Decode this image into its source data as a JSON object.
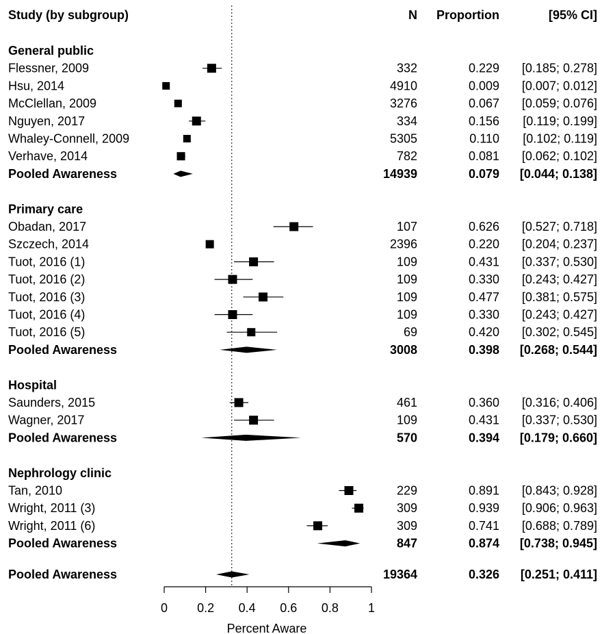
{
  "chart_data": {
    "type": "forest",
    "header": {
      "study": "Study (by subgroup)",
      "n": "N",
      "proportion": "Proportion",
      "ci": "[95% CI]"
    },
    "xlabel": "Percent Aware",
    "xlim": [
      0,
      1
    ],
    "xticks": [
      0,
      0.2,
      0.4,
      0.6,
      0.8,
      1
    ],
    "tick_labels": [
      "0",
      "0.2",
      "0.4",
      "0.6",
      "0.8",
      "1"
    ],
    "reference_line": 0.326,
    "subgroups": [
      {
        "name": "General public",
        "studies": [
          {
            "label": "Flessner, 2009",
            "n": "332",
            "prop": 0.229,
            "lo": 0.185,
            "hi": 0.278,
            "prop_text": "0.229",
            "ci_text": "[0.185; 0.278]",
            "size": 13
          },
          {
            "label": "Hsu, 2014",
            "n": "4910",
            "prop": 0.009,
            "lo": 0.007,
            "hi": 0.012,
            "prop_text": "0.009",
            "ci_text": "[0.007; 0.012]",
            "size": 11
          },
          {
            "label": "McClellan, 2009",
            "n": "3276",
            "prop": 0.067,
            "lo": 0.059,
            "hi": 0.076,
            "prop_text": "0.067",
            "ci_text": "[0.059; 0.076]",
            "size": 11
          },
          {
            "label": "Nguyen, 2017",
            "n": "334",
            "prop": 0.156,
            "lo": 0.119,
            "hi": 0.199,
            "prop_text": "0.156",
            "ci_text": "[0.119; 0.199]",
            "size": 13
          },
          {
            "label": "Whaley-Connell, 2009",
            "n": "5305",
            "prop": 0.11,
            "lo": 0.102,
            "hi": 0.119,
            "prop_text": "0.110",
            "ci_text": "[0.102; 0.119]",
            "size": 11
          },
          {
            "label": "Verhave, 2014",
            "n": "782",
            "prop": 0.081,
            "lo": 0.062,
            "hi": 0.102,
            "prop_text": "0.081",
            "ci_text": "[0.062; 0.102]",
            "size": 12
          }
        ],
        "pooled": {
          "label": "Pooled Awareness",
          "n": "14939",
          "prop": 0.079,
          "lo": 0.044,
          "hi": 0.138,
          "prop_text": "0.079",
          "ci_text": "[0.044; 0.138]"
        }
      },
      {
        "name": "Primary care",
        "studies": [
          {
            "label": "Obadan, 2017",
            "n": "107",
            "prop": 0.626,
            "lo": 0.527,
            "hi": 0.718,
            "prop_text": "0.626",
            "ci_text": "[0.527; 0.718]",
            "size": 13
          },
          {
            "label": "Szczech, 2014",
            "n": "2396",
            "prop": 0.22,
            "lo": 0.204,
            "hi": 0.237,
            "prop_text": "0.220",
            "ci_text": "[0.204; 0.237]",
            "size": 12
          },
          {
            "label": "Tuot, 2016 (1)",
            "n": "109",
            "prop": 0.431,
            "lo": 0.337,
            "hi": 0.53,
            "prop_text": "0.431",
            "ci_text": "[0.337; 0.530]",
            "size": 13
          },
          {
            "label": "Tuot, 2016 (2)",
            "n": "109",
            "prop": 0.33,
            "lo": 0.243,
            "hi": 0.427,
            "prop_text": "0.330",
            "ci_text": "[0.243; 0.427]",
            "size": 13
          },
          {
            "label": "Tuot, 2016 (3)",
            "n": "109",
            "prop": 0.477,
            "lo": 0.381,
            "hi": 0.575,
            "prop_text": "0.477",
            "ci_text": "[0.381; 0.575]",
            "size": 13
          },
          {
            "label": "Tuot, 2016 (4)",
            "n": "109",
            "prop": 0.33,
            "lo": 0.243,
            "hi": 0.427,
            "prop_text": "0.330",
            "ci_text": "[0.243; 0.427]",
            "size": 13
          },
          {
            "label": "Tuot, 2016 (5)",
            "n": "69",
            "prop": 0.42,
            "lo": 0.302,
            "hi": 0.545,
            "prop_text": "0.420",
            "ci_text": "[0.302; 0.545]",
            "size": 12
          }
        ],
        "pooled": {
          "label": "Pooled Awareness",
          "n": "3008",
          "prop": 0.398,
          "lo": 0.268,
          "hi": 0.544,
          "prop_text": "0.398",
          "ci_text": "[0.268; 0.544]"
        }
      },
      {
        "name": "Hospital",
        "studies": [
          {
            "label": "Saunders, 2015",
            "n": "461",
            "prop": 0.36,
            "lo": 0.316,
            "hi": 0.406,
            "prop_text": "0.360",
            "ci_text": "[0.316; 0.406]",
            "size": 13
          },
          {
            "label": "Wagner, 2017",
            "n": "109",
            "prop": 0.431,
            "lo": 0.337,
            "hi": 0.53,
            "prop_text": "0.431",
            "ci_text": "[0.337; 0.530]",
            "size": 13
          }
        ],
        "pooled": {
          "label": "Pooled Awareness",
          "n": "570",
          "prop": 0.394,
          "lo": 0.179,
          "hi": 0.66,
          "prop_text": "0.394",
          "ci_text": "[0.179; 0.660]"
        }
      },
      {
        "name": "Nephrology clinic",
        "studies": [
          {
            "label": "Tan, 2010",
            "n": "229",
            "prop": 0.891,
            "lo": 0.843,
            "hi": 0.928,
            "prop_text": "0.891",
            "ci_text": "[0.843; 0.928]",
            "size": 13
          },
          {
            "label": "Wright, 2011 (3)",
            "n": "309",
            "prop": 0.939,
            "lo": 0.906,
            "hi": 0.963,
            "prop_text": "0.939",
            "ci_text": "[0.906; 0.963]",
            "size": 13
          },
          {
            "label": "Wright, 2011 (6)",
            "n": "309",
            "prop": 0.741,
            "lo": 0.688,
            "hi": 0.789,
            "prop_text": "0.741",
            "ci_text": "[0.688; 0.789]",
            "size": 13
          }
        ],
        "pooled": {
          "label": "Pooled Awareness",
          "n": "847",
          "prop": 0.874,
          "lo": 0.738,
          "hi": 0.945,
          "prop_text": "0.874",
          "ci_text": "[0.738; 0.945]"
        }
      }
    ],
    "overall": {
      "label": "Pooled Awareness",
      "n": "19364",
      "prop": 0.326,
      "lo": 0.251,
      "hi": 0.411,
      "prop_text": "0.326",
      "ci_text": "[0.251; 0.411]"
    }
  }
}
